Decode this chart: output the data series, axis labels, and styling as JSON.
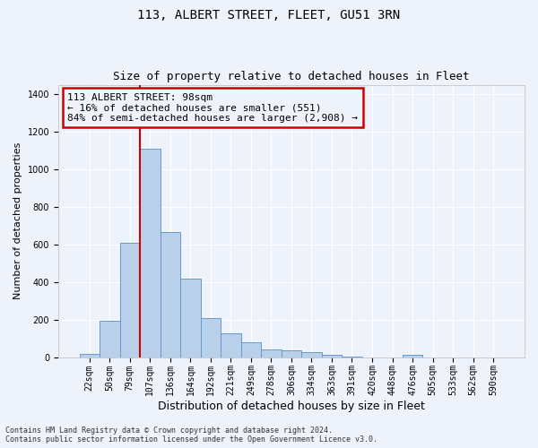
{
  "title": "113, ALBERT STREET, FLEET, GU51 3RN",
  "subtitle": "Size of property relative to detached houses in Fleet",
  "xlabel": "Distribution of detached houses by size in Fleet",
  "ylabel": "Number of detached properties",
  "footer_line1": "Contains HM Land Registry data © Crown copyright and database right 2024.",
  "footer_line2": "Contains public sector information licensed under the Open Government Licence v3.0.",
  "annotation_line1": "113 ALBERT STREET: 98sqm",
  "annotation_line2": "← 16% of detached houses are smaller (551)",
  "annotation_line3": "84% of semi-detached houses are larger (2,908) →",
  "bar_labels": [
    "22sqm",
    "50sqm",
    "79sqm",
    "107sqm",
    "136sqm",
    "164sqm",
    "192sqm",
    "221sqm",
    "249sqm",
    "278sqm",
    "306sqm",
    "334sqm",
    "363sqm",
    "391sqm",
    "420sqm",
    "448sqm",
    "476sqm",
    "505sqm",
    "533sqm",
    "562sqm",
    "590sqm"
  ],
  "bar_values": [
    15,
    195,
    610,
    1110,
    665,
    420,
    210,
    125,
    80,
    40,
    35,
    25,
    10,
    3,
    0,
    0,
    12,
    0,
    0,
    0,
    0
  ],
  "bar_color": "#b8d0ea",
  "bar_edge_color": "#6699cc",
  "vline_color": "#cc0000",
  "vline_x_index": 2.5,
  "ylim": [
    0,
    1450
  ],
  "yticks": [
    0,
    200,
    400,
    600,
    800,
    1000,
    1200,
    1400
  ],
  "annotation_box_color": "#cc0000",
  "background_color": "#eef2fa",
  "grid_color": "#ffffff",
  "title_fontsize": 10,
  "subtitle_fontsize": 9,
  "ylabel_fontsize": 8,
  "xlabel_fontsize": 9,
  "tick_fontsize": 7,
  "annotation_fontsize": 8,
  "footer_fontsize": 6
}
